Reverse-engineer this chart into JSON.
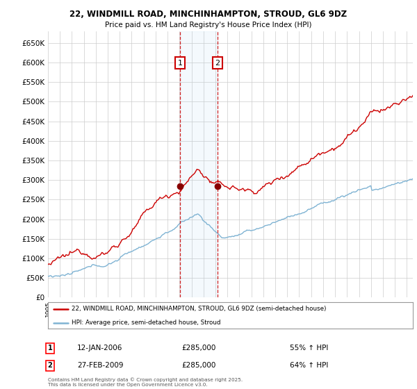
{
  "title_line1": "22, WINDMILL ROAD, MINCHINHAMPTON, STROUD, GL6 9DZ",
  "title_line2": "Price paid vs. HM Land Registry's House Price Index (HPI)",
  "ylim": [
    0,
    680000
  ],
  "xlim_start": 1995.0,
  "xlim_end": 2025.5,
  "yticks": [
    0,
    50000,
    100000,
    150000,
    200000,
    250000,
    300000,
    350000,
    400000,
    450000,
    500000,
    550000,
    600000,
    650000
  ],
  "ytick_labels": [
    "£0",
    "£50K",
    "£100K",
    "£150K",
    "£200K",
    "£250K",
    "£300K",
    "£350K",
    "£400K",
    "£450K",
    "£500K",
    "£550K",
    "£600K",
    "£650K"
  ],
  "red_color": "#cc0000",
  "blue_color": "#7fb3d3",
  "sale1_x": 2006.04,
  "sale1_y": 285000,
  "sale2_x": 2009.16,
  "sale2_y": 285000,
  "sale1_date": "12-JAN-2006",
  "sale1_price": "£285,000",
  "sale1_hpi": "55% ↑ HPI",
  "sale2_date": "27-FEB-2009",
  "sale2_price": "£285,000",
  "sale2_hpi": "64% ↑ HPI",
  "legend_line1": "22, WINDMILL ROAD, MINCHINHAMPTON, STROUD, GL6 9DZ (semi-detached house)",
  "legend_line2": "HPI: Average price, semi-detached house, Stroud",
  "footnote": "Contains HM Land Registry data © Crown copyright and database right 2025.\nThis data is licensed under the Open Government Licence v3.0.",
  "bg_color": "#ffffff",
  "grid_color": "#cccccc"
}
